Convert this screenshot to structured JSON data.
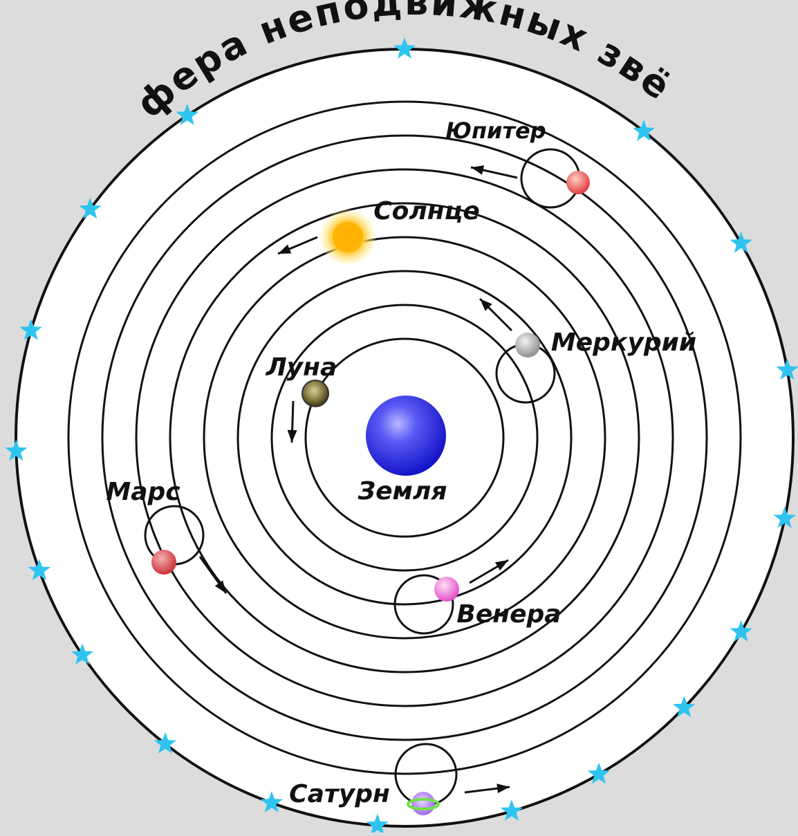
{
  "title": "Сфера неподвижных звёзд",
  "labels": {
    "earth": "Земля",
    "moon": "Луна",
    "mercury": "Меркурий",
    "venus": "Венера",
    "sun": "Солнце",
    "mars": "Марс",
    "jupiter": "Юпитер",
    "saturn": "Сатурн"
  },
  "colors": {
    "background": "#dcdcdc",
    "disc": "#ffffff",
    "orbit": "#111111",
    "star": "#2ec4ef",
    "earth": "#3a3af0",
    "sun": "#ffb800",
    "moon": "#6b6234",
    "mercury": "#b8b8b8",
    "venus": "#f07ad8",
    "mars": "#d9484e",
    "jupiter": "#e8555a",
    "saturn": "#a86cf0"
  }
}
